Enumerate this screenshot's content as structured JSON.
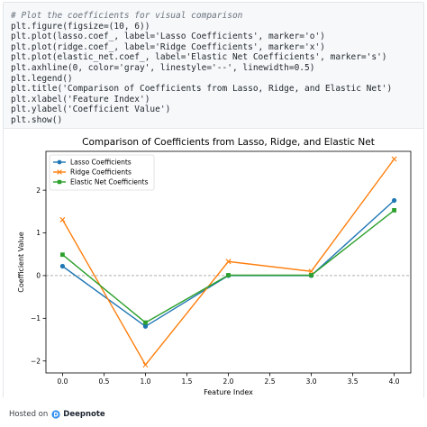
{
  "code": {
    "lines": [
      {
        "text": "# Plot the coefficients for visual comparison",
        "kind": "comment"
      },
      {
        "text": "plt.figure(figsize=(10, 6))",
        "kind": "code"
      },
      {
        "text": "plt.plot(lasso.coef_, label='Lasso Coefficients', marker='o')",
        "kind": "code"
      },
      {
        "text": "plt.plot(ridge.coef_, label='Ridge Coefficients', marker='x')",
        "kind": "code"
      },
      {
        "text": "plt.plot(elastic_net.coef_, label='Elastic Net Coefficients', marker='s')",
        "kind": "code"
      },
      {
        "text": "plt.axhline(0, color='gray', linestyle='--', linewidth=0.5)",
        "kind": "code"
      },
      {
        "text": "plt.legend()",
        "kind": "code"
      },
      {
        "text": "plt.title('Comparison of Coefficients from Lasso, Ridge, and Elastic Net')",
        "kind": "code"
      },
      {
        "text": "plt.xlabel('Feature Index')",
        "kind": "code"
      },
      {
        "text": "plt.ylabel('Coefficient Value')",
        "kind": "code"
      },
      {
        "text": "plt.show()",
        "kind": "code"
      }
    ]
  },
  "chart_data": {
    "type": "line",
    "title": "Comparison of Coefficients from Lasso, Ridge, and Elastic Net",
    "xlabel": "Feature Index",
    "ylabel": "Coefficient Value",
    "x": [
      0,
      1,
      2,
      3,
      4
    ],
    "xlim": [
      -0.2,
      4.2
    ],
    "ylim": [
      -2.28,
      2.91
    ],
    "xticks": [
      0.0,
      0.5,
      1.0,
      1.5,
      2.0,
      2.5,
      3.0,
      3.5,
      4.0
    ],
    "xtick_labels": [
      "0.0",
      "0.5",
      "1.0",
      "1.5",
      "2.0",
      "2.5",
      "3.0",
      "3.5",
      "4.0"
    ],
    "yticks": [
      -2,
      -1,
      0,
      1,
      2
    ],
    "ytick_labels": [
      "−2",
      "−1",
      "0",
      "1",
      "2"
    ],
    "grid": false,
    "legend_position": "upper-left",
    "hline": {
      "y": 0,
      "color": "#808080",
      "style": "dashed"
    },
    "series": [
      {
        "name": "Lasso Coefficients",
        "values": [
          0.22,
          -1.19,
          0.0,
          0.0,
          1.76
        ],
        "color": "#1f77b4",
        "marker": "circle"
      },
      {
        "name": "Ridge Coefficients",
        "values": [
          1.31,
          -2.09,
          0.33,
          0.1,
          2.73
        ],
        "color": "#ff7f0e",
        "marker": "x"
      },
      {
        "name": "Elastic Net Coefficients",
        "values": [
          0.49,
          -1.1,
          0.01,
          0.01,
          1.53
        ],
        "color": "#2ca02c",
        "marker": "square"
      }
    ]
  },
  "footer": {
    "hosted_label": "Hosted on",
    "brand": "Deepnote",
    "logo_icon": "deepnote-logo-icon"
  }
}
